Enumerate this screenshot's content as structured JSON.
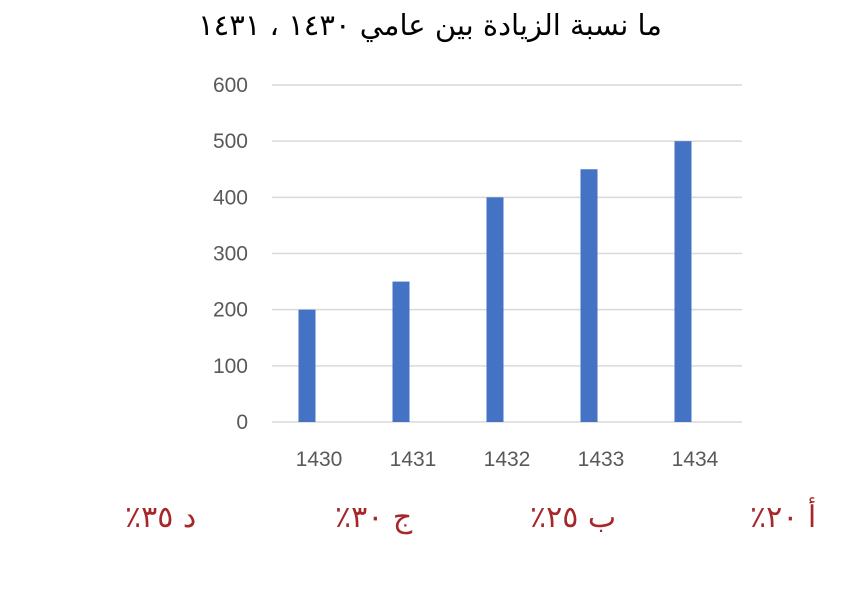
{
  "question": "ما نسبة الزيادة بين عامي ١٤٣٠ ، ١٤٣١",
  "chart_data": {
    "type": "bar",
    "categories": [
      "1430",
      "1431",
      "1432",
      "1433",
      "1434"
    ],
    "values": [
      200,
      250,
      400,
      450,
      500
    ],
    "title": "",
    "xlabel": "",
    "ylabel": "",
    "ylim": [
      0,
      600
    ],
    "yticks": [
      0,
      100,
      200,
      300,
      400,
      500,
      600
    ],
    "grid": true,
    "legend": "none",
    "bar_color": "#4472c4",
    "grid_color": "#d9d9d9"
  },
  "options": {
    "a": "أ ٢٠٪",
    "b": "ب ٢٥٪",
    "c": "ج ٣٠٪",
    "d": "د ٣٥٪"
  }
}
